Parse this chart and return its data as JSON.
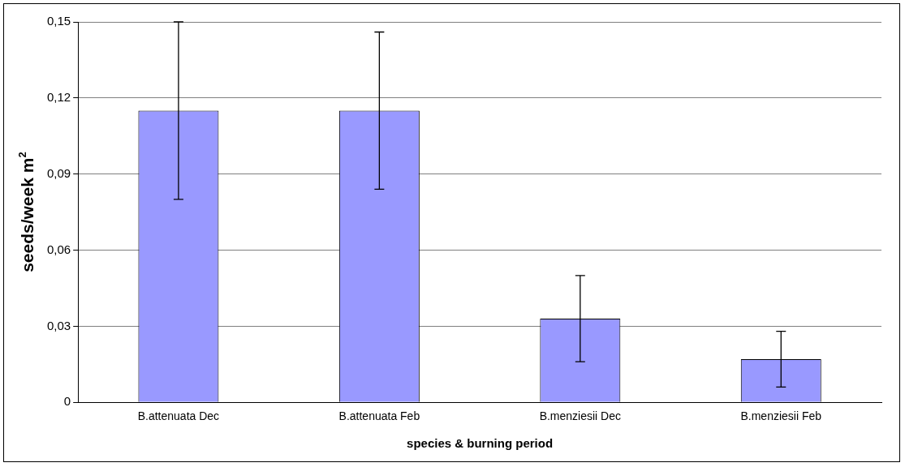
{
  "chart_data": {
    "type": "bar",
    "xlabel": "species & burning period",
    "ylabel": "seeds/week m$^{2}$",
    "categories": [
      "B.attenuata Dec",
      "B.attenuata Feb",
      "B.menziesii Dec",
      "B.menziesii Feb"
    ],
    "values": [
      0.115,
      0.115,
      0.033,
      0.017
    ],
    "errors": [
      0.035,
      0.031,
      0.017,
      0.011
    ],
    "color": "#9999ff",
    "ylim": [
      0,
      0.15
    ],
    "yticks": [
      0,
      {
        "value": 0.03,
        "label": "0,03"
      },
      {
        "value": 0.06,
        "label": "0,06"
      },
      {
        "value": 0.09,
        "label": "0,09"
      },
      {
        "value": 0.12,
        "label": "0,12"
      },
      {
        "value": 0.15,
        "label": "0,15"
      }
    ],
    "grid": "y",
    "legend": false
  }
}
